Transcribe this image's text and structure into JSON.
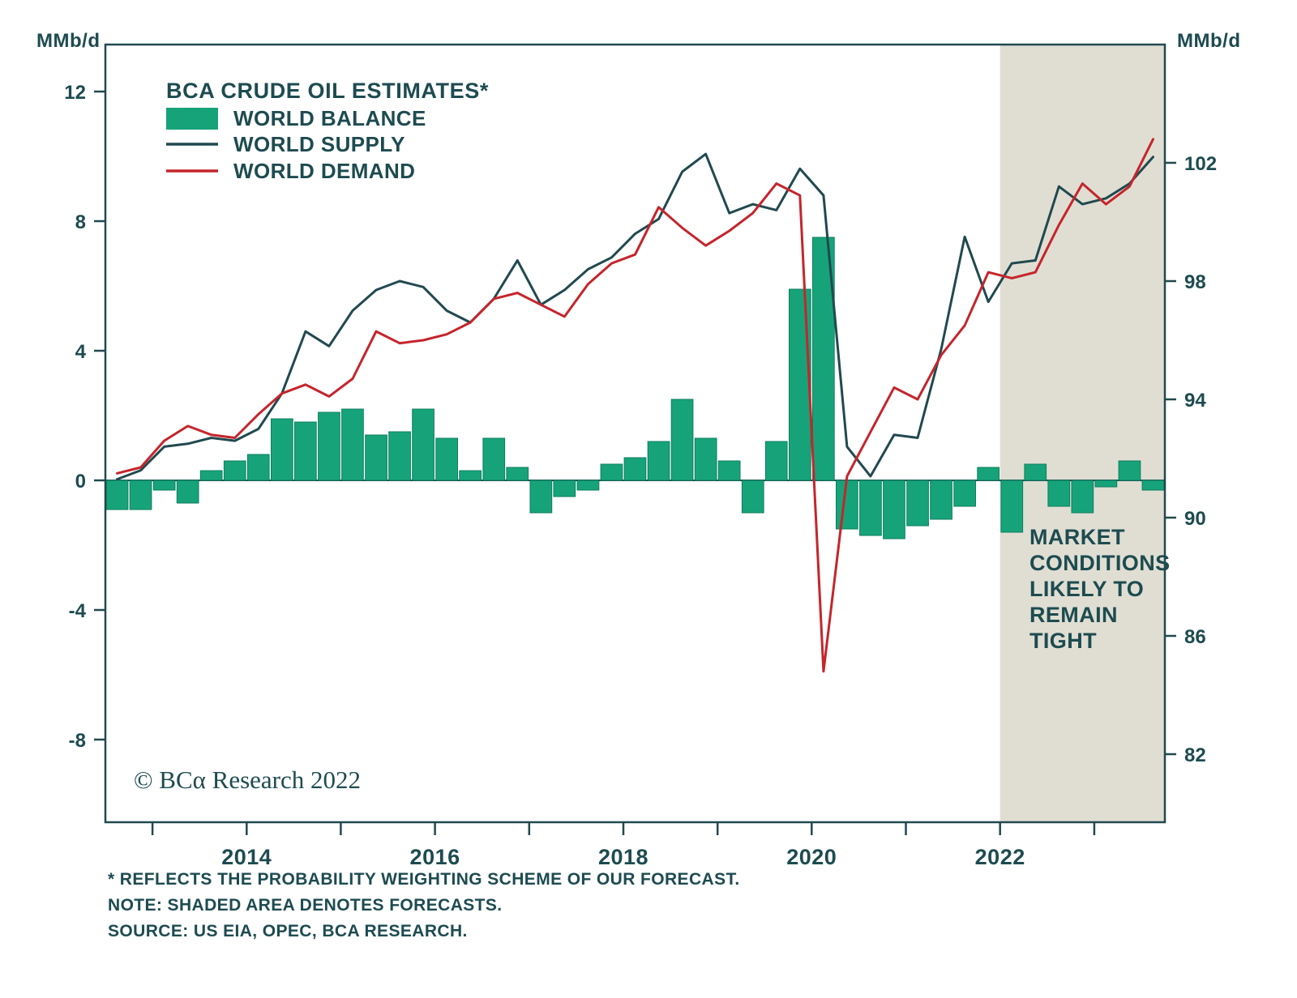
{
  "header": {
    "unit_left": "MMb/d",
    "unit_right": "MMb/d"
  },
  "legend": {
    "title": "BCA CRUDE OIL ESTIMATES*"
  },
  "annotation": {
    "lines": [
      "MARKET",
      "CONDITIONS",
      "LIKELY TO",
      "REMAIN",
      "TIGHT"
    ]
  },
  "copyright": "© BCα Research 2022",
  "footnotes": [
    "* REFLECTS THE PROBABILITY WEIGHTING SCHEME OF OUR FORECAST.",
    "NOTE: SHADED AREA DENOTES FORECASTS.",
    "SOURCE: US EIA, OPEC, BCA RESEARCH."
  ],
  "colors": {
    "balance": "#17a37a",
    "bar_edge": "#0e7e5d",
    "supply": "#21494f",
    "demand": "#c5252c",
    "frame": "#21494f",
    "text": "#1d4b50",
    "annotation": "#c5252c",
    "forecast_shade": "#e0ded3"
  },
  "chart_data": {
    "type": "bar+line",
    "x_range": [
      2012.5,
      2023.75
    ],
    "x_step": 0.25,
    "x_ticks": [
      2013,
      2014,
      2015,
      2016,
      2017,
      2018,
      2019,
      2020,
      2021,
      2022,
      2023
    ],
    "x_tick_labels": [
      2014,
      2016,
      2018,
      2020,
      2022
    ],
    "left_axis": {
      "label": "MMb/d",
      "ticks": [
        12,
        8,
        4,
        0,
        -4,
        -8
      ],
      "range": [
        -10.55,
        13.45
      ]
    },
    "right_axis": {
      "label": "MMb/d",
      "ticks": [
        102,
        98,
        94,
        90,
        86,
        82
      ],
      "range": [
        79.7,
        106.0
      ]
    },
    "forecast_region": {
      "start": 2022.0,
      "end": 2023.75
    },
    "series": [
      {
        "name": "WORLD BALANCE",
        "type": "bar",
        "axis": "left",
        "color": "#17a37a",
        "values": [
          -0.9,
          -0.9,
          -0.3,
          -0.7,
          0.3,
          0.6,
          0.8,
          1.9,
          1.8,
          2.1,
          2.2,
          1.4,
          1.5,
          2.2,
          1.3,
          0.3,
          1.3,
          0.4,
          -1.0,
          -0.5,
          -0.3,
          0.5,
          0.7,
          1.2,
          2.5,
          1.3,
          0.6,
          -1.0,
          1.2,
          5.9,
          7.5,
          -1.5,
          -1.7,
          -1.8,
          -1.4,
          -1.2,
          -0.8,
          0.4,
          -1.6,
          0.5,
          -0.8,
          -1.0,
          -0.2,
          0.6,
          -0.3
        ]
      },
      {
        "name": "WORLD SUPPLY",
        "type": "line",
        "axis": "right",
        "color": "#21494f",
        "values": [
          91.3,
          91.6,
          92.4,
          92.5,
          92.7,
          92.6,
          93.0,
          94.2,
          96.3,
          95.8,
          97.0,
          97.7,
          98.0,
          97.8,
          97.0,
          96.6,
          97.4,
          98.7,
          97.2,
          97.7,
          98.4,
          98.8,
          99.6,
          100.1,
          101.7,
          102.3,
          100.3,
          100.6,
          100.4,
          101.8,
          100.9,
          92.4,
          91.4,
          92.8,
          92.7,
          95.7,
          99.5,
          97.3,
          98.6,
          98.7,
          101.2,
          100.6,
          100.8,
          101.3,
          102.2
        ]
      },
      {
        "name": "WORLD DEMAND",
        "type": "line",
        "axis": "right",
        "color": "#c5252c",
        "values": [
          91.5,
          91.7,
          92.6,
          93.1,
          92.8,
          92.7,
          93.5,
          94.2,
          94.5,
          94.1,
          94.7,
          96.3,
          95.9,
          96.0,
          96.2,
          96.6,
          97.4,
          97.6,
          97.2,
          96.8,
          97.9,
          98.6,
          98.9,
          100.5,
          99.8,
          99.2,
          99.7,
          100.3,
          101.3,
          100.9,
          84.8,
          91.4,
          92.9,
          94.4,
          94.0,
          95.5,
          96.5,
          98.3,
          98.1,
          98.3,
          99.9,
          101.3,
          100.6,
          101.2,
          102.8
        ]
      }
    ]
  }
}
